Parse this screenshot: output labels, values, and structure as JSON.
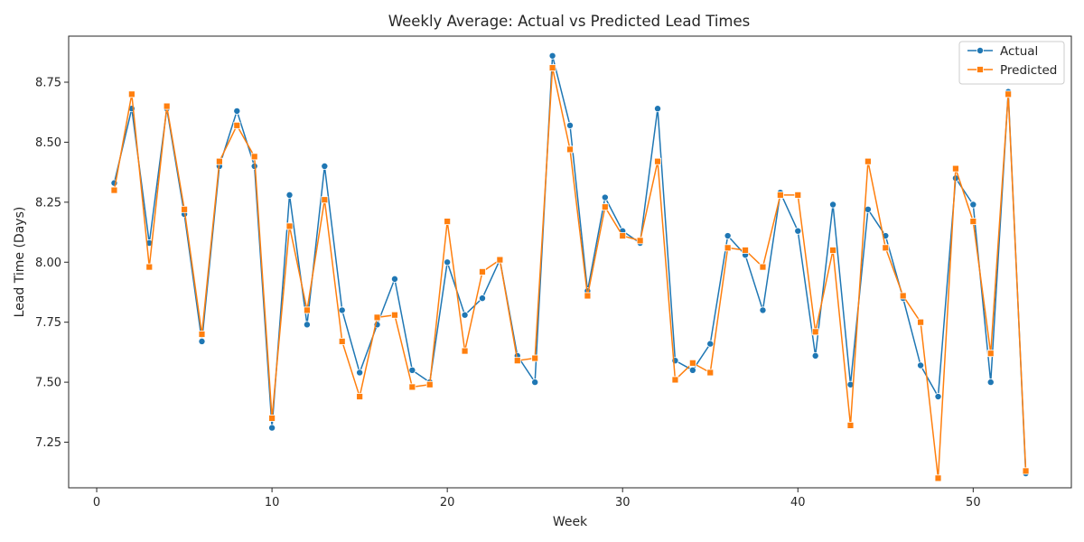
{
  "chart_data": {
    "type": "line",
    "title": "Weekly Average: Actual vs Predicted Lead Times",
    "xlabel": "Week",
    "ylabel": "Lead Time (Days)",
    "xlim": [
      -1.6,
      55.6
    ],
    "ylim": [
      7.06,
      8.942
    ],
    "x_ticks": [
      0,
      10,
      20,
      30,
      40,
      50
    ],
    "y_ticks": [
      7.25,
      7.5,
      7.75,
      8.0,
      8.25,
      8.5,
      8.75
    ],
    "y_tick_labels": [
      "7.25",
      "7.50",
      "7.75",
      "8.00",
      "8.25",
      "8.50",
      "8.75"
    ],
    "grid": false,
    "legend_position": "top-right",
    "x": [
      1,
      2,
      3,
      4,
      5,
      6,
      7,
      8,
      9,
      10,
      11,
      12,
      13,
      14,
      15,
      16,
      17,
      18,
      19,
      20,
      21,
      22,
      23,
      24,
      25,
      26,
      27,
      28,
      29,
      30,
      31,
      32,
      33,
      34,
      35,
      36,
      37,
      38,
      39,
      40,
      41,
      42,
      43,
      44,
      45,
      46,
      47,
      48,
      49,
      50,
      51,
      52,
      53
    ],
    "series": [
      {
        "name": "Actual",
        "color": "#1f77b4",
        "marker": "circle",
        "values": [
          8.33,
          8.64,
          8.08,
          8.64,
          8.2,
          7.67,
          8.4,
          8.63,
          8.4,
          7.31,
          8.28,
          7.74,
          8.4,
          7.8,
          7.54,
          7.74,
          7.93,
          7.55,
          7.5,
          8.0,
          7.78,
          7.85,
          8.01,
          7.61,
          7.5,
          8.86,
          8.57,
          7.88,
          8.27,
          8.13,
          8.08,
          8.64,
          7.59,
          7.55,
          7.66,
          8.11,
          8.03,
          7.8,
          8.29,
          8.13,
          7.61,
          8.24,
          7.49,
          8.22,
          8.11,
          7.85,
          7.57,
          7.44,
          8.35,
          8.24,
          7.5,
          8.71,
          7.12
        ]
      },
      {
        "name": "Predicted",
        "color": "#ff7f0e",
        "marker": "square",
        "values": [
          8.3,
          8.7,
          7.98,
          8.65,
          8.22,
          7.7,
          8.42,
          8.57,
          8.44,
          7.35,
          8.15,
          7.8,
          8.26,
          7.67,
          7.44,
          7.77,
          7.78,
          7.48,
          7.49,
          8.17,
          7.63,
          7.96,
          8.01,
          7.59,
          7.6,
          8.81,
          8.47,
          7.86,
          8.23,
          8.11,
          8.09,
          8.42,
          7.51,
          7.58,
          7.54,
          8.06,
          8.05,
          7.98,
          8.28,
          8.28,
          7.71,
          8.05,
          7.32,
          8.42,
          8.06,
          7.86,
          7.75,
          7.1,
          8.39,
          8.17,
          7.62,
          8.7,
          7.13
        ]
      }
    ]
  }
}
